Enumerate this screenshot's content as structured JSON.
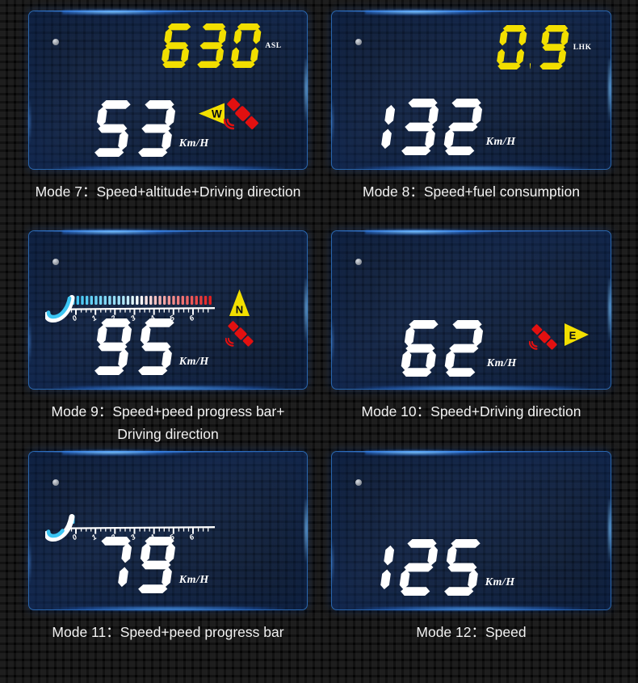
{
  "poster": {
    "description_visible_text_only": true
  },
  "icons": {
    "satellite_color": "#e21010",
    "status_dot_color": "#aab0b8",
    "arrow_color": "#f2df00"
  },
  "modes": [
    {
      "id": "mode-7",
      "caption": "Mode 7：Speed+altitude+Driving direction",
      "screen": {
        "status_dot": true,
        "readouts": [
          {
            "role": "secondary",
            "value": "630",
            "unit": "ASL",
            "color": "#f2df00"
          },
          {
            "role": "primary",
            "value": "53",
            "unit": "Km/H",
            "color": "#ffffff"
          }
        ],
        "direction": {
          "letter": "W",
          "pointing": "left",
          "color": "#f2df00"
        },
        "satellite": true,
        "progress_bar": null
      }
    },
    {
      "id": "mode-8",
      "caption": "Mode 8：Speed+fuel consumption",
      "screen": {
        "status_dot": true,
        "readouts": [
          {
            "role": "secondary",
            "value": "0.9",
            "unit": "LHK",
            "color": "#f2df00"
          },
          {
            "role": "primary",
            "value": "132",
            "unit": "Km/H",
            "color": "#ffffff"
          }
        ],
        "direction": null,
        "satellite": false,
        "progress_bar": null
      }
    },
    {
      "id": "mode-9",
      "caption": "Mode 9：Speed+peed progress bar+\nDriving direction",
      "screen": {
        "status_dot": true,
        "readouts": [
          {
            "role": "primary",
            "value": "95",
            "unit": "Km/H",
            "color": "#ffffff"
          }
        ],
        "direction": {
          "letter": "N",
          "pointing": "up",
          "color": "#f2df00"
        },
        "satellite": true,
        "progress_bar": {
          "scale_labels": [
            "0",
            "1",
            "2",
            "3",
            "4",
            "5",
            "6"
          ],
          "segments_total": 31,
          "segments_lit": 31,
          "gradient_stops": [
            "#38c2f2",
            "#ffffff",
            "#e31f1f"
          ],
          "needle_color": "#3cc6f4"
        }
      }
    },
    {
      "id": "mode-10",
      "caption": "Mode 10：Speed+Driving direction",
      "screen": {
        "status_dot": true,
        "readouts": [
          {
            "role": "primary",
            "value": "62",
            "unit": "Km/H",
            "color": "#ffffff"
          }
        ],
        "direction": {
          "letter": "E",
          "pointing": "right",
          "color": "#f2df00"
        },
        "satellite": true,
        "progress_bar": null
      }
    },
    {
      "id": "mode-11",
      "caption": "Mode 11：Speed+peed progress bar",
      "screen": {
        "status_dot": true,
        "readouts": [
          {
            "role": "primary",
            "value": "79",
            "unit": "Km/H",
            "color": "#ffffff"
          }
        ],
        "direction": null,
        "satellite": false,
        "progress_bar": {
          "scale_labels": [
            "0",
            "1",
            "2",
            "3",
            "4",
            "5",
            "6"
          ],
          "segments_total": 31,
          "segments_lit": 1,
          "gradient_stops": [
            "#38c2f2",
            "#ffffff",
            "#e31f1f"
          ],
          "needle_color": "#3cc6f4"
        }
      }
    },
    {
      "id": "mode-12",
      "caption": "Mode 12：Speed",
      "screen": {
        "status_dot": true,
        "readouts": [
          {
            "role": "primary",
            "value": "125",
            "unit": "Km/H",
            "color": "#ffffff"
          }
        ],
        "direction": null,
        "satellite": false,
        "progress_bar": null
      }
    }
  ]
}
